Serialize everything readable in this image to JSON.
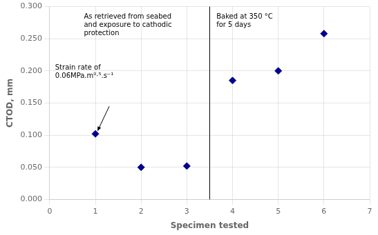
{
  "chart_data": {
    "type": "scatter",
    "x": [
      1,
      2,
      3,
      4,
      5,
      6
    ],
    "values": [
      0.102,
      0.05,
      0.052,
      0.185,
      0.2,
      0.258
    ],
    "xlim": [
      0,
      7
    ],
    "xticks": [
      0,
      1,
      2,
      3,
      4,
      5,
      6,
      7
    ],
    "ylim": [
      0.0,
      0.3
    ],
    "yticks": [
      {
        "value": 0,
        "label": "0.000"
      },
      {
        "value": 0.05,
        "label": "0.050"
      },
      {
        "value": 0.1,
        "label": "0.100"
      },
      {
        "value": 0.15,
        "label": "0.150"
      },
      {
        "value": 0.2,
        "label": "0.200"
      },
      {
        "value": 0.25,
        "label": "0.250"
      },
      {
        "value": 0.3,
        "label": "0.300"
      }
    ],
    "xlabel": "Specimen tested",
    "ylabel": "CTOD, mm",
    "color": "#00008B",
    "marker": "diamond",
    "grid": true,
    "vline": 3.5,
    "annotations": [
      "As retrieved from seabed\nand exposure to cathodic\nprotection",
      "Baked at 350 °C\nfor 5 days",
      "Strain rate of\n0.06MPa.m⁰·⁵.s⁻¹"
    ]
  }
}
